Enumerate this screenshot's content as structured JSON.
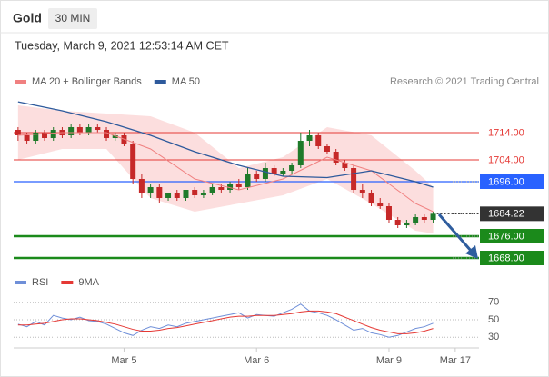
{
  "header": {
    "instrument": "Gold",
    "timeframe": "30 MIN",
    "timestamp": "Tuesday, March 9, 2021 12:53:14 AM CET",
    "credit": "Research © 2021 Trading Central"
  },
  "chart_data": [
    {
      "type": "candlestick",
      "x": [
        0,
        1,
        2,
        3,
        4,
        5,
        6,
        7,
        8,
        9,
        10,
        11,
        12,
        13,
        14,
        15,
        16,
        17,
        18,
        19,
        20,
        21,
        22,
        23,
        24,
        25,
        26,
        27,
        28,
        29,
        30,
        31,
        32,
        33,
        34,
        35,
        36,
        37,
        38,
        39,
        40,
        41,
        42,
        43,
        44,
        45,
        46,
        47
      ],
      "open": [
        1715,
        1713,
        1711,
        1714,
        1712,
        1715,
        1713,
        1716,
        1714,
        1716,
        1715,
        1712,
        1713,
        1710,
        1697,
        1692,
        1694,
        1690,
        1692,
        1690,
        1693,
        1691,
        1692,
        1694,
        1693,
        1695,
        1694,
        1699,
        1697,
        1701,
        1699,
        1700,
        1702,
        1711,
        1713,
        1709,
        1707,
        1703,
        1701,
        1693,
        1692,
        1688,
        1687,
        1682,
        1680,
        1681,
        1683,
        1682
      ],
      "high": [
        1716,
        1714,
        1715,
        1715,
        1716,
        1716,
        1717,
        1717,
        1717,
        1717,
        1716,
        1714,
        1714,
        1711,
        1699,
        1695,
        1695,
        1692,
        1693,
        1693,
        1694,
        1693,
        1695,
        1695,
        1696,
        1697,
        1701,
        1700,
        1703,
        1702,
        1701,
        1703,
        1714,
        1715,
        1714,
        1710,
        1708,
        1704,
        1702,
        1695,
        1693,
        1690,
        1688,
        1683,
        1682,
        1684,
        1684,
        1685
      ],
      "low": [
        1711,
        1710,
        1710,
        1711,
        1711,
        1712,
        1712,
        1713,
        1713,
        1714,
        1711,
        1711,
        1709,
        1695,
        1690,
        1690,
        1688,
        1689,
        1689,
        1689,
        1690,
        1690,
        1691,
        1692,
        1692,
        1693,
        1693,
        1696,
        1696,
        1698,
        1698,
        1699,
        1701,
        1709,
        1708,
        1706,
        1702,
        1700,
        1692,
        1690,
        1687,
        1686,
        1681,
        1679,
        1679,
        1680,
        1681,
        1681
      ],
      "close": [
        1713,
        1711,
        1714,
        1712,
        1715,
        1713,
        1716,
        1714,
        1716,
        1715,
        1712,
        1713,
        1710,
        1697,
        1692,
        1694,
        1690,
        1692,
        1690,
        1693,
        1691,
        1692,
        1694,
        1693,
        1695,
        1694,
        1699,
        1697,
        1701,
        1699,
        1700,
        1702,
        1711,
        1713,
        1709,
        1707,
        1703,
        1701,
        1693,
        1692,
        1688,
        1687,
        1682,
        1680,
        1681,
        1683,
        1682,
        1684.22
      ],
      "up_color": "#1f7a2a",
      "down_color": "#c62828",
      "series": [
        {
          "name": "MA 20 + Bollinger Bands",
          "color": "#f08080",
          "band_color": "#fbd3d3",
          "x": [
            0,
            5,
            10,
            15,
            20,
            25,
            30,
            35,
            40,
            45,
            47
          ],
          "values": [
            1713,
            1714,
            1714,
            1708,
            1697,
            1693,
            1697,
            1705,
            1700,
            1688,
            1685
          ],
          "upper": [
            1724,
            1722,
            1721,
            1720,
            1714,
            1701,
            1705,
            1716,
            1713,
            1700,
            1694
          ],
          "lower": [
            1704,
            1708,
            1708,
            1690,
            1685,
            1688,
            1691,
            1697,
            1688,
            1678,
            1677
          ]
        },
        {
          "name": "MA 50",
          "color": "#2e5a9c",
          "x": [
            0,
            5,
            10,
            15,
            20,
            25,
            30,
            35,
            40,
            45,
            47
          ],
          "values": [
            1725.3,
            1722,
            1718,
            1713,
            1707,
            1702,
            1698,
            1697.5,
            1700,
            1696,
            1694
          ]
        }
      ],
      "levels": [
        {
          "value": 1714,
          "label": "1714.00",
          "color": "#e53935",
          "box": false,
          "width": 1
        },
        {
          "value": 1704,
          "label": "1704.00",
          "color": "#e53935",
          "box": false,
          "width": 1
        },
        {
          "value": 1696,
          "label": "1696.00",
          "color": "#2962ff",
          "box": true,
          "width": 1.2
        },
        {
          "value": 1684.22,
          "label": "1684.22",
          "color": "#333333",
          "box": true,
          "width": 1,
          "dotted": true
        },
        {
          "value": 1676,
          "label": "1676.00",
          "color": "#1b8a1b",
          "box": true,
          "width": 2.5
        },
        {
          "value": 1668,
          "label": "1668.00",
          "color": "#1b8a1b",
          "box": true,
          "width": 2.5
        }
      ],
      "xlim": [
        -0.5,
        52.5
      ],
      "ylim": [
        1664,
        1728
      ]
    },
    {
      "type": "line",
      "x": [
        0,
        1,
        2,
        3,
        4,
        5,
        6,
        7,
        8,
        9,
        10,
        11,
        12,
        13,
        14,
        15,
        16,
        17,
        18,
        19,
        20,
        21,
        22,
        23,
        24,
        25,
        26,
        27,
        28,
        29,
        30,
        31,
        32,
        33,
        34,
        35,
        36,
        37,
        38,
        39,
        40,
        41,
        42,
        43,
        44,
        45,
        46,
        47
      ],
      "series": [
        {
          "name": "RSI",
          "color": "#6f8fd8",
          "values": [
            45,
            42,
            48,
            44,
            55,
            52,
            50,
            53,
            49,
            48,
            45,
            40,
            35,
            32,
            38,
            42,
            40,
            44,
            42,
            46,
            48,
            50,
            52,
            54,
            56,
            58,
            52,
            56,
            55,
            54,
            58,
            62,
            68,
            60,
            58,
            55,
            50,
            44,
            38,
            40,
            35,
            33,
            30,
            32,
            36,
            40,
            42,
            46
          ]
        },
        {
          "name": "9MA",
          "color": "#e53935",
          "values": [
            44,
            44,
            45,
            46,
            48,
            50,
            51,
            51,
            50,
            49,
            47,
            45,
            42,
            39,
            37,
            37,
            38,
            40,
            41,
            43,
            45,
            47,
            49,
            51,
            53,
            54,
            54,
            55,
            55,
            55,
            56,
            57,
            59,
            60,
            60,
            59,
            57,
            53,
            49,
            45,
            41,
            38,
            36,
            34,
            34,
            35,
            37,
            40
          ]
        }
      ],
      "xlim": [
        -0.5,
        52.5
      ],
      "ylim": [
        25,
        75
      ],
      "yticks": [
        70,
        50,
        30
      ],
      "grid": true,
      "xticks": [
        {
          "value": 12,
          "label": "Mar 5"
        },
        {
          "value": 27,
          "label": "Mar 6"
        },
        {
          "value": 42,
          "label": "Mar 9"
        },
        {
          "value": 49.5,
          "label": "Mar 17"
        }
      ]
    }
  ]
}
